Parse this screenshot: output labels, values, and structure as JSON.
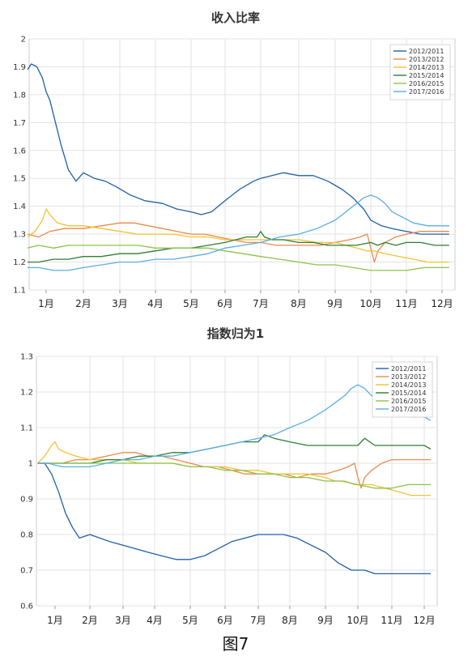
{
  "figure_caption": "图7",
  "chart_data": [
    {
      "type": "line",
      "title": "收入比率",
      "xlabel": "",
      "ylabel": "",
      "categories": [
        "1月",
        "2月",
        "3月",
        "4月",
        "5月",
        "6月",
        "7月",
        "8月",
        "9月",
        "10月",
        "11月",
        "12月"
      ],
      "ylim": [
        1.1,
        2.0
      ],
      "yticks": [
        "1.1",
        "1.2",
        "1.3",
        "1.4",
        "1.5",
        "1.6",
        "1.7",
        "1.8",
        "1.9",
        "2"
      ],
      "grid": true,
      "legend_position": "top-right",
      "series": [
        {
          "name": "2012/2011",
          "color": "#1f5fa8",
          "x": [
            0.5,
            0.6,
            0.75,
            0.9,
            1.0,
            1.1,
            1.25,
            1.4,
            1.6,
            1.8,
            2.0,
            2.3,
            2.6,
            2.9,
            3.3,
            3.7,
            4.2,
            4.6,
            5.0,
            5.3,
            5.6,
            6.0,
            6.4,
            6.8,
            7.0,
            7.3,
            7.6,
            8.0,
            8.4,
            8.8,
            9.2,
            9.5,
            9.8,
            10.0,
            10.3,
            10.6,
            11.0,
            11.4,
            11.8,
            12.2
          ],
          "values": [
            1.89,
            1.91,
            1.9,
            1.86,
            1.81,
            1.78,
            1.7,
            1.62,
            1.53,
            1.49,
            1.52,
            1.5,
            1.49,
            1.47,
            1.44,
            1.42,
            1.41,
            1.39,
            1.38,
            1.37,
            1.38,
            1.42,
            1.46,
            1.49,
            1.5,
            1.51,
            1.52,
            1.51,
            1.51,
            1.49,
            1.46,
            1.43,
            1.39,
            1.35,
            1.33,
            1.32,
            1.31,
            1.3,
            1.3,
            1.3
          ]
        },
        {
          "name": "2013/2012",
          "color": "#e98a4b",
          "x": [
            0.5,
            0.8,
            1.1,
            1.5,
            2.0,
            2.5,
            3.0,
            3.4,
            3.8,
            4.2,
            4.6,
            5.0,
            5.4,
            5.8,
            6.2,
            6.6,
            7.0,
            7.4,
            7.8,
            8.2,
            8.6,
            9.0,
            9.4,
            9.7,
            9.9,
            10.0,
            10.1,
            10.2,
            10.4,
            10.7,
            11.0,
            11.4,
            11.8,
            12.2
          ],
          "values": [
            1.3,
            1.29,
            1.31,
            1.32,
            1.32,
            1.33,
            1.34,
            1.34,
            1.33,
            1.32,
            1.31,
            1.3,
            1.3,
            1.29,
            1.28,
            1.27,
            1.27,
            1.26,
            1.26,
            1.26,
            1.26,
            1.27,
            1.28,
            1.29,
            1.3,
            1.25,
            1.2,
            1.24,
            1.27,
            1.29,
            1.3,
            1.31,
            1.31,
            1.31
          ]
        },
        {
          "name": "2014/2013",
          "color": "#f2c232",
          "x": [
            0.5,
            0.7,
            0.9,
            1.0,
            1.1,
            1.3,
            1.6,
            2.0,
            2.5,
            3.0,
            3.5,
            4.0,
            4.5,
            5.0,
            5.5,
            6.0,
            6.5,
            7.0,
            7.5,
            8.0,
            8.5,
            9.0,
            9.3,
            9.6,
            9.9,
            10.1,
            10.4,
            10.8,
            11.2,
            11.6,
            12.0,
            12.2
          ],
          "values": [
            1.29,
            1.31,
            1.35,
            1.39,
            1.37,
            1.34,
            1.33,
            1.33,
            1.32,
            1.31,
            1.3,
            1.3,
            1.3,
            1.29,
            1.29,
            1.28,
            1.28,
            1.28,
            1.28,
            1.28,
            1.27,
            1.27,
            1.26,
            1.25,
            1.24,
            1.24,
            1.23,
            1.22,
            1.21,
            1.2,
            1.2,
            1.2
          ]
        },
        {
          "name": "2015/2014",
          "color": "#2e7d32",
          "x": [
            0.5,
            0.8,
            1.2,
            1.6,
            2.0,
            2.5,
            3.0,
            3.5,
            4.0,
            4.5,
            5.0,
            5.5,
            6.0,
            6.3,
            6.6,
            6.9,
            7.0,
            7.1,
            7.3,
            7.6,
            8.0,
            8.4,
            8.8,
            9.2,
            9.6,
            10.0,
            10.2,
            10.4,
            10.7,
            11.0,
            11.4,
            11.8,
            12.2
          ],
          "values": [
            1.2,
            1.2,
            1.21,
            1.21,
            1.22,
            1.22,
            1.23,
            1.23,
            1.24,
            1.25,
            1.25,
            1.26,
            1.27,
            1.28,
            1.29,
            1.29,
            1.31,
            1.29,
            1.28,
            1.28,
            1.27,
            1.27,
            1.26,
            1.26,
            1.26,
            1.27,
            1.26,
            1.27,
            1.26,
            1.27,
            1.27,
            1.26,
            1.26
          ]
        },
        {
          "name": "2016/2015",
          "color": "#8bc34a",
          "x": [
            0.5,
            0.8,
            1.2,
            1.6,
            2.0,
            2.5,
            3.0,
            3.5,
            4.0,
            4.5,
            5.0,
            5.5,
            6.0,
            6.5,
            7.0,
            7.5,
            8.0,
            8.5,
            9.0,
            9.5,
            10.0,
            10.5,
            11.0,
            11.5,
            12.0,
            12.2
          ],
          "values": [
            1.25,
            1.26,
            1.25,
            1.26,
            1.26,
            1.26,
            1.26,
            1.26,
            1.25,
            1.25,
            1.25,
            1.25,
            1.24,
            1.23,
            1.22,
            1.21,
            1.2,
            1.19,
            1.19,
            1.18,
            1.17,
            1.17,
            1.17,
            1.18,
            1.18,
            1.18
          ]
        },
        {
          "name": "2017/2016",
          "color": "#5aaee0",
          "x": [
            0.5,
            0.8,
            1.2,
            1.6,
            2.0,
            2.5,
            3.0,
            3.5,
            4.0,
            4.5,
            5.0,
            5.5,
            6.0,
            6.5,
            7.0,
            7.5,
            8.0,
            8.5,
            9.0,
            9.3,
            9.6,
            9.8,
            10.0,
            10.2,
            10.4,
            10.6,
            10.9,
            11.2,
            11.6,
            12.0,
            12.2
          ],
          "values": [
            1.18,
            1.18,
            1.17,
            1.17,
            1.18,
            1.19,
            1.2,
            1.2,
            1.21,
            1.21,
            1.22,
            1.23,
            1.25,
            1.26,
            1.27,
            1.29,
            1.3,
            1.32,
            1.35,
            1.38,
            1.41,
            1.43,
            1.44,
            1.43,
            1.41,
            1.38,
            1.36,
            1.34,
            1.33,
            1.33,
            1.33
          ]
        }
      ]
    },
    {
      "type": "line",
      "title": "指数归为1",
      "xlabel": "",
      "ylabel": "",
      "categories": [
        "1月",
        "2月",
        "3月",
        "4月",
        "5月",
        "6月",
        "7月",
        "8月",
        "9月",
        "10月",
        "11月",
        "12月"
      ],
      "ylim": [
        0.6,
        1.3
      ],
      "yticks": [
        "0.6",
        "0.7",
        "0.8",
        "0.9",
        "1",
        "1.1",
        "1.2",
        "1.3"
      ],
      "grid": true,
      "legend_position": "top-right",
      "series": [
        {
          "name": "2012/2011",
          "color": "#1f5fa8",
          "x": [
            0.5,
            0.7,
            0.9,
            1.1,
            1.3,
            1.5,
            1.7,
            2.0,
            2.3,
            2.6,
            3.0,
            3.4,
            3.8,
            4.2,
            4.6,
            5.0,
            5.4,
            5.8,
            6.2,
            6.6,
            7.0,
            7.4,
            7.8,
            8.2,
            8.6,
            9.0,
            9.4,
            9.8,
            10.2,
            10.5,
            10.8,
            11.2,
            11.6,
            12.0,
            12.2
          ],
          "values": [
            1.0,
            1.0,
            0.97,
            0.92,
            0.86,
            0.82,
            0.79,
            0.8,
            0.79,
            0.78,
            0.77,
            0.76,
            0.75,
            0.74,
            0.73,
            0.73,
            0.74,
            0.76,
            0.78,
            0.79,
            0.8,
            0.8,
            0.8,
            0.79,
            0.77,
            0.75,
            0.72,
            0.7,
            0.7,
            0.69,
            0.69,
            0.69,
            0.69,
            0.69,
            0.69
          ]
        },
        {
          "name": "2013/2012",
          "color": "#e98a4b",
          "x": [
            0.5,
            0.8,
            1.2,
            1.6,
            2.0,
            2.5,
            3.0,
            3.4,
            3.8,
            4.2,
            4.6,
            5.0,
            5.4,
            5.8,
            6.2,
            6.6,
            7.0,
            7.4,
            7.8,
            8.2,
            8.6,
            9.0,
            9.4,
            9.7,
            9.9,
            10.0,
            10.1,
            10.2,
            10.4,
            10.7,
            11.0,
            11.4,
            11.8,
            12.2
          ],
          "values": [
            1.0,
            1.0,
            1.0,
            1.01,
            1.01,
            1.02,
            1.03,
            1.03,
            1.02,
            1.02,
            1.01,
            1.0,
            0.99,
            0.99,
            0.98,
            0.97,
            0.97,
            0.97,
            0.97,
            0.96,
            0.97,
            0.97,
            0.98,
            0.99,
            1.0,
            0.96,
            0.93,
            0.96,
            0.98,
            1.0,
            1.01,
            1.01,
            1.01,
            1.01
          ]
        },
        {
          "name": "2014/2013",
          "color": "#f2c232",
          "x": [
            0.5,
            0.7,
            0.9,
            1.0,
            1.1,
            1.3,
            1.6,
            2.0,
            2.5,
            3.0,
            3.5,
            4.0,
            4.5,
            5.0,
            5.5,
            6.0,
            6.5,
            7.0,
            7.5,
            8.0,
            8.5,
            9.0,
            9.3,
            9.6,
            9.9,
            10.1,
            10.4,
            10.8,
            11.2,
            11.6,
            12.0,
            12.2
          ],
          "values": [
            1.0,
            1.02,
            1.05,
            1.06,
            1.04,
            1.03,
            1.02,
            1.01,
            1.01,
            1.01,
            1.0,
            1.0,
            1.0,
            0.99,
            0.99,
            0.99,
            0.98,
            0.98,
            0.97,
            0.97,
            0.97,
            0.96,
            0.95,
            0.95,
            0.94,
            0.94,
            0.94,
            0.93,
            0.92,
            0.91,
            0.91,
            0.91
          ]
        },
        {
          "name": "2015/2014",
          "color": "#2e7d32",
          "x": [
            0.5,
            0.8,
            1.2,
            1.6,
            2.0,
            2.5,
            3.0,
            3.5,
            4.0,
            4.5,
            5.0,
            5.5,
            6.0,
            6.5,
            7.0,
            7.2,
            7.5,
            8.0,
            8.5,
            9.0,
            9.5,
            10.0,
            10.2,
            10.5,
            11.0,
            11.5,
            12.0,
            12.2
          ],
          "values": [
            1.0,
            1.0,
            1.0,
            1.0,
            1.0,
            1.01,
            1.01,
            1.02,
            1.02,
            1.03,
            1.03,
            1.04,
            1.05,
            1.06,
            1.06,
            1.08,
            1.07,
            1.06,
            1.05,
            1.05,
            1.05,
            1.05,
            1.07,
            1.05,
            1.05,
            1.05,
            1.05,
            1.04
          ]
        },
        {
          "name": "2016/2015",
          "color": "#8bc34a",
          "x": [
            0.5,
            0.8,
            1.2,
            1.6,
            2.0,
            2.5,
            3.0,
            3.5,
            4.0,
            4.5,
            5.0,
            5.5,
            6.0,
            6.5,
            7.0,
            7.5,
            8.0,
            8.5,
            9.0,
            9.5,
            10.0,
            10.5,
            11.0,
            11.5,
            12.0,
            12.2
          ],
          "values": [
            1.0,
            1.0,
            1.0,
            1.0,
            1.0,
            1.0,
            1.0,
            1.0,
            1.0,
            1.0,
            0.99,
            0.99,
            0.98,
            0.98,
            0.97,
            0.97,
            0.96,
            0.96,
            0.95,
            0.95,
            0.94,
            0.93,
            0.93,
            0.94,
            0.94,
            0.94
          ]
        },
        {
          "name": "2017/2016",
          "color": "#5aaee0",
          "x": [
            0.5,
            0.8,
            1.2,
            1.6,
            2.0,
            2.5,
            3.0,
            3.5,
            4.0,
            4.5,
            5.0,
            5.5,
            6.0,
            6.5,
            7.0,
            7.5,
            8.0,
            8.5,
            9.0,
            9.3,
            9.6,
            9.8,
            10.0,
            10.2,
            10.4,
            10.6,
            10.9,
            11.2,
            11.6,
            12.0,
            12.2
          ],
          "values": [
            1.0,
            1.0,
            0.99,
            0.99,
            0.99,
            1.0,
            1.01,
            1.01,
            1.02,
            1.02,
            1.03,
            1.04,
            1.05,
            1.06,
            1.07,
            1.08,
            1.1,
            1.12,
            1.15,
            1.17,
            1.19,
            1.21,
            1.22,
            1.21,
            1.19,
            1.17,
            1.15,
            1.14,
            1.13,
            1.13,
            1.12
          ]
        }
      ]
    }
  ]
}
